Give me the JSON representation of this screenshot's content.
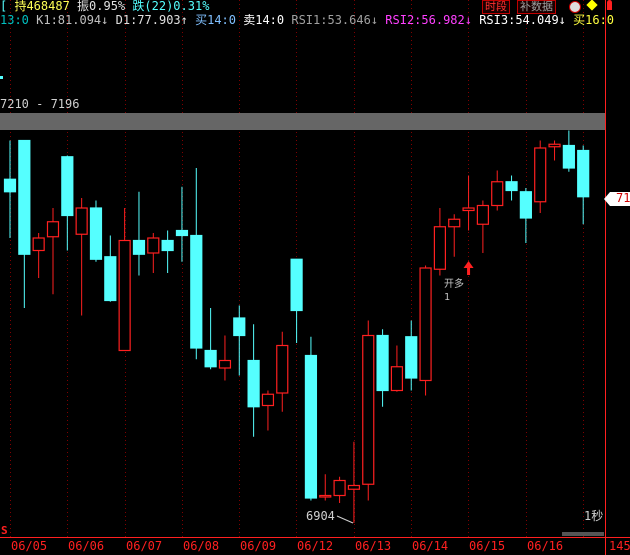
{
  "header": {
    "line1": [
      {
        "text": "[",
        "color": "#55ffff"
      },
      {
        "text": " 持468487",
        "color": "#ffff55"
      },
      {
        "text": " 振0.95%",
        "color": "#e0e0e0"
      },
      {
        "text": " 跌(22)0.31%",
        "color": "#55ffff"
      }
    ],
    "line2": [
      {
        "text": "13:0",
        "color": "#00c0c0"
      },
      {
        "text": " K1:81.094↓",
        "color": "#c0c0c0"
      },
      {
        "text": " D1:77.903↑",
        "color": "#e0e0e0"
      },
      {
        "text": " 买14:0",
        "color": "#80c0ff"
      },
      {
        "text": " 卖14:0",
        "color": "#ffffff"
      },
      {
        "text": " RSI1:53.646↓",
        "color": "#a0a0a0"
      },
      {
        "text": " RSI2:56.982↓",
        "color": "#ff40ff"
      },
      {
        "text": " RSI3:54.049↓",
        "color": "#ffffff"
      },
      {
        "text": " 买16:0",
        "color": "#ffff40"
      }
    ],
    "buttons": {
      "period": "时段",
      "fill_data": "补数据"
    },
    "icons": [
      "clock-icon",
      "warning-diamond-icon",
      "person-icon"
    ]
  },
  "chart": {
    "range_label": "7210 - 7196",
    "low_label": "6904",
    "signal_label": "开多",
    "signal_count": "1",
    "refresh_label": "1秒",
    "price_tag": "71",
    "s_marker": "S",
    "right_axis_label": "145",
    "dates": [
      "06/05",
      "06/06",
      "06/07",
      "06/08",
      "06/09",
      "06/12",
      "06/13",
      "06/14",
      "06/15",
      "06/16"
    ],
    "colors": {
      "up": "#ff2020",
      "down": "#55ffff",
      "grid": "#800000",
      "band": "#666666"
    }
  },
  "chart_data": {
    "type": "candlestick",
    "fields": [
      "open",
      "high",
      "low",
      "close"
    ],
    "candles": [
      [
        7179,
        7210,
        7132,
        7169
      ],
      [
        7210,
        7210,
        7076,
        7119
      ],
      [
        7122,
        7136,
        7100,
        7132
      ],
      [
        7133,
        7156,
        7087,
        7145
      ],
      [
        7197,
        7198,
        7122,
        7150
      ],
      [
        7135,
        7164,
        7070,
        7156
      ],
      [
        7156,
        7162,
        7113,
        7115
      ],
      [
        7117,
        7134,
        7081,
        7082
      ],
      [
        7042,
        7156,
        7042,
        7130
      ],
      [
        7130,
        7169,
        7102,
        7119
      ],
      [
        7120,
        7136,
        7104,
        7132
      ],
      [
        7130,
        7138,
        7104,
        7122
      ],
      [
        7138,
        7173,
        7113,
        7134
      ],
      [
        7134,
        7188,
        7035,
        7044
      ],
      [
        7042,
        7076,
        7027,
        7029
      ],
      [
        7028,
        7054,
        7018,
        7034
      ],
      [
        7068,
        7078,
        7022,
        7054
      ],
      [
        7034,
        7063,
        6973,
        6997
      ],
      [
        6998,
        7010,
        6978,
        7007
      ],
      [
        7008,
        7057,
        6993,
        7046
      ],
      [
        7115,
        7115,
        7048,
        7074
      ],
      [
        7038,
        7053,
        6922,
        6924
      ],
      [
        6925,
        6943,
        6922,
        6926
      ],
      [
        6926,
        6941,
        6920,
        6938
      ],
      [
        6931,
        6969,
        6904,
        6934
      ],
      [
        6935,
        7066,
        6922,
        7054
      ],
      [
        7054,
        7059,
        6997,
        7010
      ],
      [
        7010,
        7046,
        7009,
        7029
      ],
      [
        7053,
        7066,
        7010,
        7020
      ],
      [
        7018,
        7110,
        7006,
        7108
      ],
      [
        7107,
        7156,
        7102,
        7141
      ],
      [
        7141,
        7151,
        7117,
        7147
      ],
      [
        7154,
        7182,
        7138,
        7156
      ],
      [
        7143,
        7162,
        7120,
        7158
      ],
      [
        7158,
        7186,
        7154,
        7177
      ],
      [
        7177,
        7182,
        7162,
        7170
      ],
      [
        7169,
        7172,
        7128,
        7148
      ],
      [
        7161,
        7210,
        7152,
        7204
      ],
      [
        7205,
        7210,
        7194,
        7207
      ],
      [
        7206,
        7218,
        7185,
        7188
      ],
      [
        7202,
        7206,
        7143,
        7165
      ]
    ],
    "signal": {
      "index": 31,
      "label": "开多"
    }
  }
}
